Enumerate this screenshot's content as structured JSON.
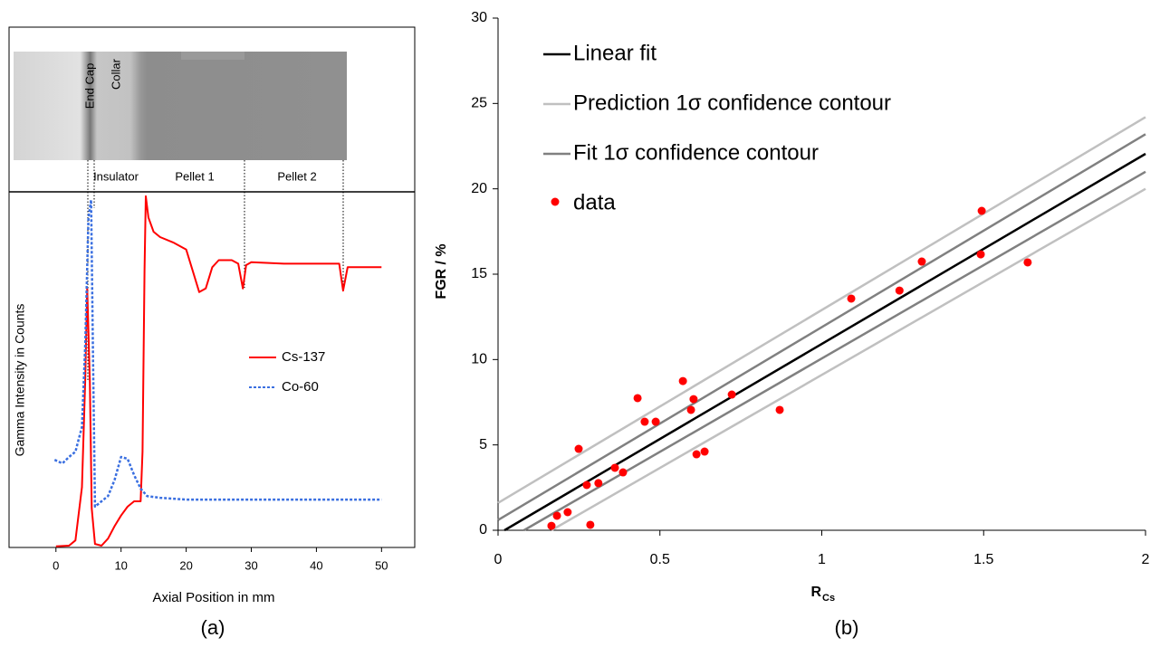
{
  "chart_data": [
    {
      "type": "line",
      "caption": "(a)",
      "xlabel": "Axial Position in mm",
      "ylabel": "Gamma Intensity in Counts",
      "annotations": [
        "End Cap",
        "Collar",
        "Insulator",
        "Pellet 1",
        "Pellet 2"
      ],
      "xlim": [
        -7.2,
        55.1
      ],
      "xticks": [
        0,
        10,
        20,
        30,
        40,
        50
      ],
      "ylim": [
        0,
        100
      ],
      "legend": "right",
      "series": [
        {
          "name": "Cs-137",
          "color": "#ff0000",
          "linestyle": "solid",
          "x": [
            0,
            2,
            3,
            4,
            4.5,
            4.8,
            5.2,
            5.5,
            6,
            7,
            8,
            9,
            10,
            11,
            12,
            13,
            13.3,
            13.6,
            13.8,
            14.2,
            15,
            16,
            18,
            20,
            21,
            22,
            23,
            24,
            25,
            27,
            28,
            28.7,
            29.2,
            30,
            35,
            40,
            43.5,
            44.1,
            44.8,
            47,
            50
          ],
          "values": [
            0.3,
            0.5,
            2,
            17,
            47,
            73,
            47,
            11,
            1,
            0.5,
            2.5,
            6,
            9,
            11.5,
            13,
            13,
            27,
            78,
            99,
            93,
            89,
            87.5,
            86,
            84,
            78,
            72,
            73,
            79,
            81,
            81,
            80,
            73,
            79.6,
            80.4,
            80,
            80,
            80,
            72.4,
            79,
            79,
            79
          ]
        },
        {
          "name": "Co-60",
          "color": "#3a6fe0",
          "linestyle": "dashed",
          "x": [
            -0.2,
            1,
            2,
            3,
            4,
            4.5,
            5,
            5.4,
            5.7,
            6,
            7,
            8,
            9,
            10,
            11,
            12,
            13,
            14,
            16,
            20,
            30,
            40,
            50
          ],
          "values": [
            24.7,
            23.7,
            25.5,
            27,
            34,
            57,
            93,
            98,
            52,
            11.5,
            13,
            14.5,
            19,
            25.5,
            25,
            20.4,
            16.6,
            14.5,
            14,
            13.5,
            13.5,
            13.5,
            13.5
          ]
        }
      ]
    },
    {
      "type": "scatter",
      "caption": "(b)",
      "xlabel": {
        "text": "R",
        "subscript": "Cs"
      },
      "ylabel": "FGR / %",
      "xlim": [
        0,
        2
      ],
      "xticks": [
        0,
        0.5,
        1,
        1.5,
        2
      ],
      "ylim": [
        0,
        30
      ],
      "yticks": [
        0,
        5,
        10,
        15,
        20,
        25,
        30
      ],
      "legend": "upper left",
      "series": [
        {
          "name": "Linear fit",
          "color": "#000000",
          "kind": "line",
          "curves": [
            {
              "x": [
                0.02,
                2
              ],
              "values": [
                0,
                22.05
              ]
            }
          ]
        },
        {
          "name": "Prediction 1σ confidence contour",
          "color": "#c0c0c0",
          "kind": "line",
          "curves": [
            {
              "x": [
                0,
                2
              ],
              "values": [
                1.6,
                24.2
              ]
            },
            {
              "x": [
                0.165,
                2
              ],
              "values": [
                0,
                20.0
              ]
            }
          ]
        },
        {
          "name": "Fit 1σ confidence contour",
          "color": "#808080",
          "kind": "line",
          "curves": [
            {
              "x": [
                0,
                2
              ],
              "values": [
                0.6,
                23.2
              ]
            },
            {
              "x": [
                0.08,
                2
              ],
              "values": [
                0,
                21.0
              ]
            }
          ]
        },
        {
          "name": "data",
          "color": "#ff0000",
          "kind": "scatter",
          "x": [
            0.165,
            0.182,
            0.215,
            0.249,
            0.274,
            0.285,
            0.31,
            0.361,
            0.386,
            0.431,
            0.453,
            0.487,
            0.571,
            0.596,
            0.604,
            0.613,
            0.638,
            0.722,
            0.87,
            1.091,
            1.24,
            1.309,
            1.491,
            1.494,
            1.636
          ],
          "values": [
            0.26,
            0.85,
            1.06,
            4.77,
            2.65,
            0.32,
            2.76,
            3.66,
            3.39,
            7.74,
            6.36,
            6.36,
            8.74,
            7.05,
            7.68,
            4.45,
            4.61,
            7.95,
            7.05,
            13.57,
            14.04,
            15.74,
            16.16,
            18.71,
            15.69
          ]
        }
      ]
    }
  ]
}
